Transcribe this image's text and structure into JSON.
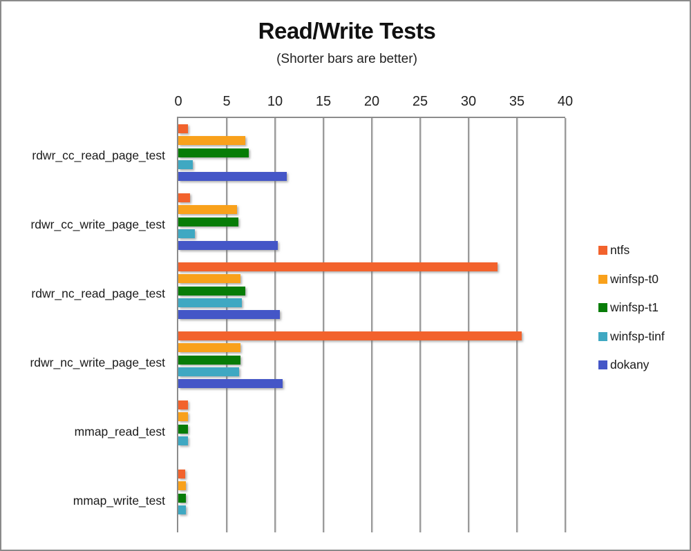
{
  "window": {
    "background": "#ffffff",
    "border_color": "#8a8a8a",
    "text_color": "#1a1a1a",
    "axis_color": "#8c8c8c",
    "gridline_color": "#9a9a9a"
  },
  "chart_data": {
    "type": "bar",
    "orientation": "horizontal",
    "title": "Read/Write Tests",
    "subtitle": "(Shorter bars are better)",
    "xlabel": "",
    "ylabel": "",
    "xlim": [
      0,
      40
    ],
    "tick_interval": 5,
    "tick_labels": [
      "0",
      "5",
      "10",
      "15",
      "20",
      "25",
      "30",
      "35",
      "40"
    ],
    "grid": true,
    "legend_position": "right",
    "categories": [
      "rdwr_cc_read_page_test",
      "rdwr_cc_write_page_test",
      "rdwr_nc_read_page_test",
      "rdwr_nc_write_page_test",
      "mmap_read_test",
      "mmap_write_test"
    ],
    "series": [
      {
        "name": "ntfs",
        "color": "#F2622C",
        "values": [
          1.0,
          1.2,
          33.0,
          35.5,
          1.0,
          0.7
        ]
      },
      {
        "name": "winfsp-t0",
        "color": "#F9A11B",
        "values": [
          6.9,
          6.1,
          6.4,
          6.4,
          1.0,
          0.75
        ]
      },
      {
        "name": "winfsp-t1",
        "color": "#077C07",
        "values": [
          7.3,
          6.2,
          6.9,
          6.4,
          1.0,
          0.8
        ]
      },
      {
        "name": "winfsp-tinf",
        "color": "#3FA8C2",
        "values": [
          1.5,
          1.7,
          6.6,
          6.3,
          1.0,
          0.75
        ]
      },
      {
        "name": "dokany",
        "color": "#4456C7",
        "values": [
          11.2,
          10.3,
          10.5,
          10.8,
          0,
          0
        ]
      }
    ]
  }
}
